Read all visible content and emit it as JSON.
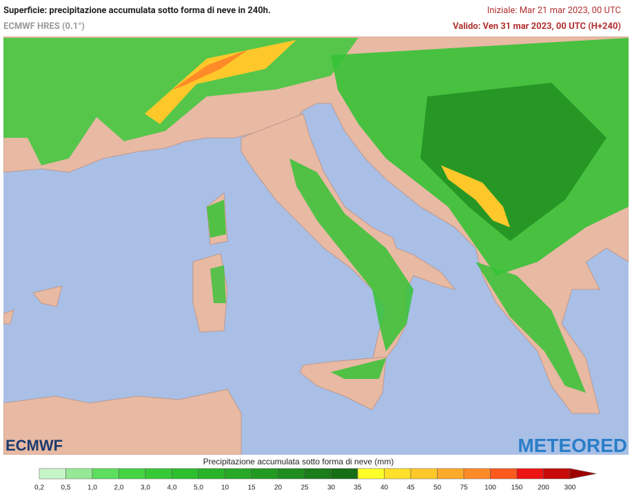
{
  "header": {
    "title": "Superficie: precipitazione accumulata sotto forma di neve in 240h.",
    "model": "ECMWF HRES (0.1°)",
    "init": "Iniziale: Mar 21 mar 2023, 00 UTC",
    "valid": "Valido: Ven 31 mar 2023, 00 UTC (H+240)"
  },
  "logos": {
    "left": "ECMWF",
    "right": "METEORED"
  },
  "legend": {
    "title": "Precipitazione accumulata sotto forma di neve (mm)",
    "labels": [
      "0,2",
      "0,5",
      "1,0",
      "2,0",
      "3,0",
      "4,0",
      "5,0",
      "10",
      "15",
      "20",
      "25",
      "30",
      "35",
      "40",
      "45",
      "50",
      "75",
      "100",
      "150",
      "200",
      "300"
    ],
    "colors": [
      "#c8f5c8",
      "#96e896",
      "#5ede5e",
      "#44d444",
      "#36c936",
      "#2ebf2e",
      "#29b429",
      "#27a827",
      "#229a22",
      "#1e8c1e",
      "#1a7d1a",
      "#166e16",
      "#ffff2a",
      "#ffe02a",
      "#ffc82a",
      "#ffaa2a",
      "#ff8a28",
      "#ff5a1e",
      "#ee1414",
      "#c80a0a"
    ],
    "overflow_color": "#9e0000"
  }
}
